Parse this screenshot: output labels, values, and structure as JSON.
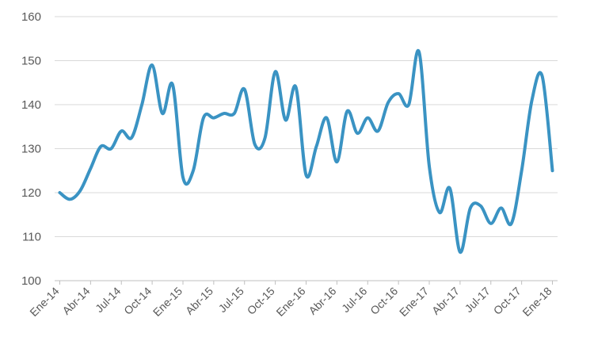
{
  "chart_data": {
    "type": "line",
    "title": "",
    "xlabel": "",
    "ylabel": "",
    "ylim": [
      100,
      160
    ],
    "yticks": [
      100,
      110,
      120,
      130,
      140,
      150,
      160
    ],
    "grid": true,
    "legend": "none",
    "x_tick_labels": [
      "Ene-14",
      "Abr-14",
      "Jul-14",
      "Oct-14",
      "Ene-15",
      "Abr-15",
      "Jul-15",
      "Oct-15",
      "Ene-16",
      "Abr-16",
      "Jul-16",
      "Oct-16",
      "Ene-17",
      "Abr-17",
      "Jul-17",
      "Oct-17",
      "Ene-18"
    ],
    "x": [
      "Ene-14",
      "Feb-14",
      "Mar-14",
      "Abr-14",
      "May-14",
      "Jun-14",
      "Jul-14",
      "Ago-14",
      "Sep-14",
      "Oct-14",
      "Nov-14",
      "Dic-14",
      "Ene-15",
      "Feb-15",
      "Mar-15",
      "Abr-15",
      "May-15",
      "Jun-15",
      "Jul-15",
      "Ago-15",
      "Sep-15",
      "Oct-15",
      "Nov-15",
      "Dic-15",
      "Ene-16",
      "Feb-16",
      "Mar-16",
      "Abr-16",
      "May-16",
      "Jun-16",
      "Jul-16",
      "Ago-16",
      "Sep-16",
      "Oct-16",
      "Nov-16",
      "Dic-16",
      "Ene-17",
      "Feb-17",
      "Mar-17",
      "Abr-17",
      "May-17",
      "Jun-17",
      "Jul-17",
      "Ago-17",
      "Sep-17",
      "Oct-17",
      "Nov-17",
      "Dic-17",
      "Ene-18"
    ],
    "series": [
      {
        "color": "#3a93c3",
        "values": [
          120,
          118.5,
          120.5,
          125.5,
          130.5,
          130,
          134,
          132.5,
          140,
          149,
          138,
          144.5,
          123.5,
          125,
          137,
          137,
          138,
          138,
          143.5,
          131,
          132.5,
          147.5,
          136.5,
          144,
          124,
          130.5,
          137,
          127,
          138.5,
          133.5,
          137,
          134,
          140.5,
          142.5,
          140,
          152,
          126,
          115.5,
          121,
          106.5,
          116.5,
          117,
          113,
          116.5,
          113,
          125,
          141,
          146.5,
          125
        ]
      }
    ]
  }
}
